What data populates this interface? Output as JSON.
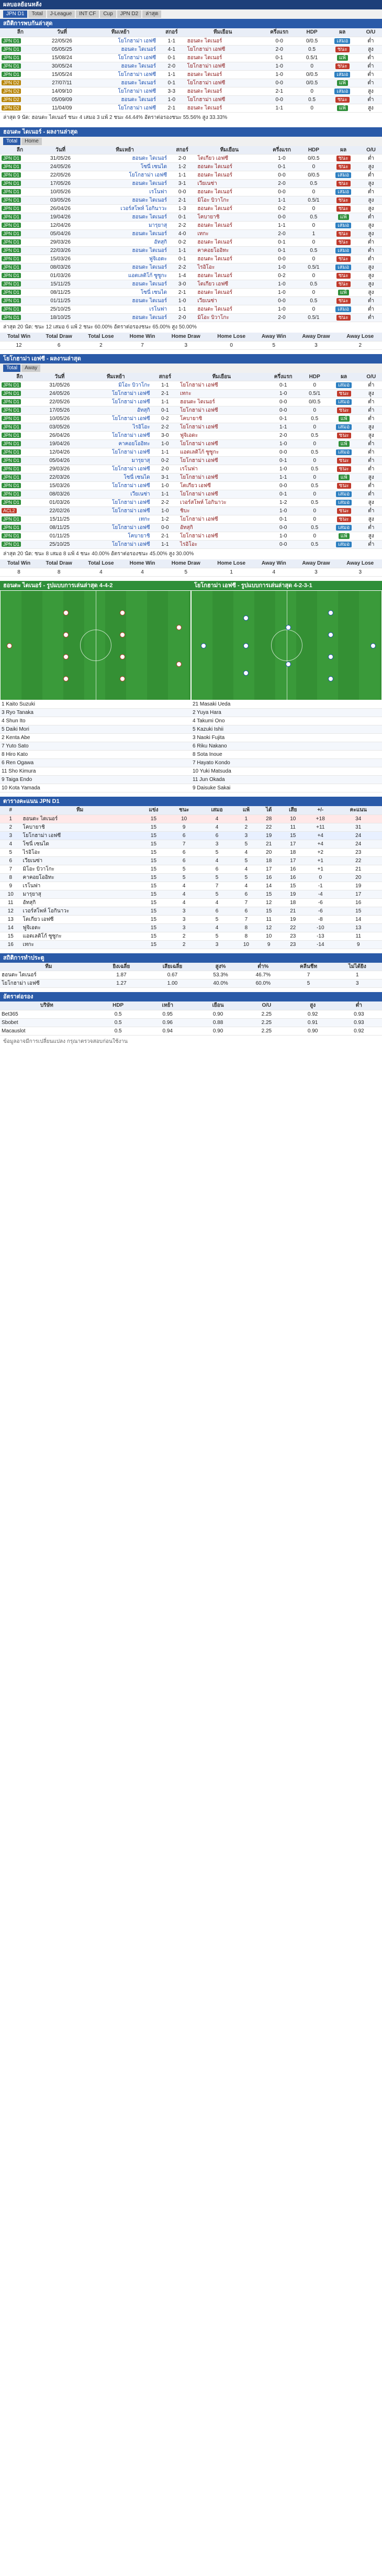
{
  "header": {
    "title": "ผลบอลย้อนหลัง",
    "filters": [
      "JPN D1",
      "Total",
      "J-League",
      "INT CF",
      "Cup",
      "JPN D2",
      "ล่าสุด"
    ]
  },
  "h2h": {
    "title": "สถิติการพบกันล่าสุด",
    "columns": [
      "ลีก",
      "วันที่",
      "ทีมเหย้า",
      "สกอร์",
      "ทีมเยือน",
      "ครึ่งแรก",
      "HDP",
      "ผล",
      "O/U"
    ],
    "rows": [
      [
        "JPN D1",
        "22/05/26",
        "โยโกฮาม่า เอฟซี",
        "1-1",
        "ฮอนดะ ไดเนอร์",
        "0-0",
        "0/0.5",
        "เสมอ",
        "ต่ำ"
      ],
      [
        "JPN D1",
        "05/05/25",
        "ฮอนดะ ไดเนอร์",
        "4-1",
        "โยโกฮาม่า เอฟซี",
        "2-0",
        "0.5",
        "ชนะ",
        "สูง"
      ],
      [
        "JPN D1",
        "15/08/24",
        "โยโกฮาม่า เอฟซี",
        "0-1",
        "ฮอนดะ ไดเนอร์",
        "0-1",
        "0.5/1",
        "แพ้",
        "ต่ำ"
      ],
      [
        "JPN D1",
        "30/05/24",
        "ฮอนดะ ไดเนอร์",
        "2-0",
        "โยโกฮาม่า เอฟซี",
        "1-0",
        "0",
        "ชนะ",
        "ต่ำ"
      ],
      [
        "JPN D1",
        "15/05/24",
        "โยโกฮาม่า เอฟซี",
        "1-1",
        "ฮอนดะ ไดเนอร์",
        "1-0",
        "0/0.5",
        "เสมอ",
        "ต่ำ"
      ],
      [
        "JPN D2",
        "27/07/11",
        "ฮอนดะ ไดเนอร์",
        "0-1",
        "โยโกฮาม่า เอฟซี",
        "0-0",
        "0/0.5",
        "แพ้",
        "ต่ำ"
      ],
      [
        "JPN D2",
        "14/09/10",
        "โยโกฮาม่า เอฟซี",
        "3-3",
        "ฮอนดะ ไดเนอร์",
        "2-1",
        "0",
        "เสมอ",
        "สูง"
      ],
      [
        "JPN D2",
        "05/09/09",
        "ฮอนดะ ไดเนอร์",
        "1-0",
        "โยโกฮาม่า เอฟซี",
        "0-0",
        "0.5",
        "ชนะ",
        "ต่ำ"
      ],
      [
        "JPN D2",
        "11/04/09",
        "โยโกฮาม่า เอฟซี",
        "2-1",
        "ฮอนดะ ไดเนอร์",
        "1-1",
        "0",
        "แพ้",
        "สูง"
      ]
    ],
    "summary": "ล่าสุด 9 นัด: ฮอนดะ ไดเนอร์ ชนะ 4 เสมอ 3 แพ้ 2 ชนะ 44.44% อัตราต่อรองชนะ 55.56% สูง 33.33%"
  },
  "team_home": {
    "title": "ฮอนดะ ไดเนอร์ - ผลงานล่าสุด",
    "tabs": [
      "Total",
      "Home"
    ],
    "rows": [
      [
        "JPN D1",
        "31/05/26",
        "ฮอนดะ ไดเนอร์",
        "2-0",
        "โตเกียว เอฟซี",
        "1-0",
        "0/0.5",
        "ชนะ",
        "ต่ำ"
      ],
      [
        "JPN D1",
        "24/05/26",
        "โซนี่ เซนได",
        "1-2",
        "ฮอนดะ ไดเนอร์",
        "0-1",
        "0",
        "ชนะ",
        "สูง"
      ],
      [
        "JPN D1",
        "22/05/26",
        "โยโกฮาม่า เอฟซี",
        "1-1",
        "ฮอนดะ ไดเนอร์",
        "0-0",
        "0/0.5",
        "เสมอ",
        "ต่ำ"
      ],
      [
        "JPN D1",
        "17/05/26",
        "ฮอนดะ ไดเนอร์",
        "3-1",
        "เวียเนซ่า",
        "2-0",
        "0.5",
        "ชนะ",
        "สูง"
      ],
      [
        "JPN D1",
        "10/05/26",
        "เรโนฟา",
        "0-0",
        "ฮอนดะ ไดเนอร์",
        "0-0",
        "0",
        "เสมอ",
        "ต่ำ"
      ],
      [
        "JPN D1",
        "03/05/26",
        "ฮอนดะ ไดเนอร์",
        "2-1",
        "มิโอะ บิวาโกะ",
        "1-1",
        "0.5/1",
        "ชนะ",
        "สูง"
      ],
      [
        "JPN D1",
        "26/04/26",
        "เวอร์สโพห์ โอกินาวะ",
        "1-3",
        "ฮอนดะ ไดเนอร์",
        "0-2",
        "0",
        "ชนะ",
        "สูง"
      ],
      [
        "JPN D1",
        "19/04/26",
        "ฮอนดะ ไดเนอร์",
        "0-1",
        "โคบายาชิ",
        "0-0",
        "0.5",
        "แพ้",
        "ต่ำ"
      ],
      [
        "JPN D1",
        "12/04/26",
        "มารุยาสุ",
        "2-2",
        "ฮอนดะ ไดเนอร์",
        "1-1",
        "0",
        "เสมอ",
        "สูง"
      ],
      [
        "JPN D1",
        "05/04/26",
        "ฮอนดะ ไดเนอร์",
        "4-0",
        "เทกะ",
        "2-0",
        "1",
        "ชนะ",
        "สูง"
      ],
      [
        "JPN D1",
        "29/03/26",
        "อัทสุกิ",
        "0-2",
        "ฮอนดะ ไดเนอร์",
        "0-1",
        "0",
        "ชนะ",
        "ต่ำ"
      ],
      [
        "JPN D1",
        "22/03/26",
        "ฮอนดะ ไดเนอร์",
        "1-1",
        "คาคอยโออิทะ",
        "0-1",
        "0.5",
        "เสมอ",
        "ต่ำ"
      ],
      [
        "JPN D1",
        "15/03/26",
        "ฟูจิเอดะ",
        "0-1",
        "ฮอนดะ ไดเนอร์",
        "0-0",
        "0",
        "ชนะ",
        "ต่ำ"
      ],
      [
        "JPN D1",
        "08/03/26",
        "ฮอนดะ ไดเนอร์",
        "2-2",
        "ไรอิโอะ",
        "1-0",
        "0.5/1",
        "เสมอ",
        "สูง"
      ],
      [
        "JPN D1",
        "01/03/26",
        "แอตเลติโก้ ซูซูกะ",
        "1-4",
        "ฮอนดะ ไดเนอร์",
        "0-2",
        "0",
        "ชนะ",
        "สูง"
      ],
      [
        "JPN D1",
        "15/11/25",
        "ฮอนดะ ไดเนอร์",
        "3-0",
        "โตเกียว เอฟซี",
        "1-0",
        "0.5",
        "ชนะ",
        "สูง"
      ],
      [
        "JPN D1",
        "08/11/25",
        "โซนี่ เซนได",
        "2-1",
        "ฮอนดะ ไดเนอร์",
        "1-0",
        "0",
        "แพ้",
        "สูง"
      ],
      [
        "JPN D1",
        "01/11/25",
        "ฮอนดะ ไดเนอร์",
        "1-0",
        "เวียเนซ่า",
        "0-0",
        "0.5",
        "ชนะ",
        "ต่ำ"
      ],
      [
        "JPN D1",
        "25/10/25",
        "เรโนฟา",
        "1-1",
        "ฮอนดะ ไดเนอร์",
        "1-0",
        "0",
        "เสมอ",
        "ต่ำ"
      ],
      [
        "JPN D1",
        "18/10/25",
        "ฮอนดะ ไดเนอร์",
        "2-0",
        "มิโอะ บิวาโกะ",
        "2-0",
        "0.5/1",
        "ชนะ",
        "ต่ำ"
      ]
    ],
    "summary": "ล่าสุด 20 นัด: ชนะ 12 เสมอ 6 แพ้ 2 ชนะ 60.00% อัตราต่อรองชนะ 65.00% สูง 50.00%"
  },
  "team_away": {
    "title": "โยโกฮาม่า เอฟซี - ผลงานล่าสุด",
    "tabs": [
      "Total",
      "Away"
    ],
    "rows": [
      [
        "JPN D1",
        "31/05/26",
        "มิโอะ บิวาโกะ",
        "1-1",
        "โยโกฮาม่า เอฟซี",
        "0-1",
        "0",
        "เสมอ",
        "ต่ำ"
      ],
      [
        "JPN D1",
        "24/05/26",
        "โยโกฮาม่า เอฟซี",
        "2-1",
        "เทกะ",
        "1-0",
        "0.5/1",
        "ชนะ",
        "สูง"
      ],
      [
        "JPN D1",
        "22/05/26",
        "โยโกฮาม่า เอฟซี",
        "1-1",
        "ฮอนดะ ไดเนอร์",
        "0-0",
        "0/0.5",
        "เสมอ",
        "ต่ำ"
      ],
      [
        "JPN D1",
        "17/05/26",
        "อัทสุกิ",
        "0-1",
        "โยโกฮาม่า เอฟซี",
        "0-0",
        "0",
        "ชนะ",
        "ต่ำ"
      ],
      [
        "JPN D1",
        "10/05/26",
        "โยโกฮาม่า เอฟซี",
        "0-2",
        "โคบายาชิ",
        "0-1",
        "0.5",
        "แพ้",
        "ต่ำ"
      ],
      [
        "JPN D1",
        "03/05/26",
        "ไรอิโอะ",
        "2-2",
        "โยโกฮาม่า เอฟซี",
        "1-1",
        "0",
        "เสมอ",
        "สูง"
      ],
      [
        "JPN D1",
        "26/04/26",
        "โยโกฮาม่า เอฟซี",
        "3-0",
        "ฟูจิเอดะ",
        "2-0",
        "0.5",
        "ชนะ",
        "สูง"
      ],
      [
        "JPN D1",
        "19/04/26",
        "คาคอยโออิทะ",
        "1-0",
        "โยโกฮาม่า เอฟซี",
        "1-0",
        "0",
        "แพ้",
        "ต่ำ"
      ],
      [
        "JPN D1",
        "12/04/26",
        "โยโกฮาม่า เอฟซี",
        "1-1",
        "แอตเลติโก้ ซูซูกะ",
        "0-0",
        "0.5",
        "เสมอ",
        "ต่ำ"
      ],
      [
        "JPN D1",
        "05/04/26",
        "มารุยาสุ",
        "0-2",
        "โยโกฮาม่า เอฟซี",
        "0-1",
        "0",
        "ชนะ",
        "ต่ำ"
      ],
      [
        "JPN D1",
        "29/03/26",
        "โยโกฮาม่า เอฟซี",
        "2-0",
        "เรโนฟา",
        "1-0",
        "0.5",
        "ชนะ",
        "ต่ำ"
      ],
      [
        "JPN D1",
        "22/03/26",
        "โซนี่ เซนได",
        "3-1",
        "โยโกฮาม่า เอฟซี",
        "1-1",
        "0",
        "แพ้",
        "สูง"
      ],
      [
        "JPN D1",
        "15/03/26",
        "โยโกฮาม่า เอฟซี",
        "1-0",
        "โตเกียว เอฟซี",
        "0-0",
        "0.5",
        "ชนะ",
        "ต่ำ"
      ],
      [
        "JPN D1",
        "08/03/26",
        "เวียเนซ่า",
        "1-1",
        "โยโกฮาม่า เอฟซี",
        "0-1",
        "0",
        "เสมอ",
        "ต่ำ"
      ],
      [
        "JPN D1",
        "01/03/26",
        "โยโกฮาม่า เอฟซี",
        "2-2",
        "เวอร์สโพห์ โอกินาวะ",
        "1-2",
        "0.5",
        "เสมอ",
        "สูง"
      ],
      [
        "ACL2",
        "22/02/26",
        "โยโกฮาม่า เอฟซี",
        "1-0",
        "ชิบะ",
        "1-0",
        "0",
        "ชนะ",
        "ต่ำ"
      ],
      [
        "JPN D1",
        "15/11/25",
        "เทกะ",
        "1-2",
        "โยโกฮาม่า เอฟซี",
        "0-1",
        "0",
        "ชนะ",
        "สูง"
      ],
      [
        "JPN D1",
        "08/11/25",
        "โยโกฮาม่า เอฟซี",
        "0-0",
        "อัทสุกิ",
        "0-0",
        "0.5",
        "เสมอ",
        "ต่ำ"
      ],
      [
        "JPN D1",
        "01/11/25",
        "โคบายาชิ",
        "2-1",
        "โยโกฮาม่า เอฟซี",
        "1-0",
        "0",
        "แพ้",
        "สูง"
      ],
      [
        "JPN D1",
        "25/10/25",
        "โยโกฮาม่า เอฟซี",
        "1-1",
        "ไรอิโอะ",
        "0-0",
        "0.5",
        "เสมอ",
        "ต่ำ"
      ]
    ],
    "summary": "ล่าสุด 20 นัด: ชนะ 8 เสมอ 8 แพ้ 4 ชนะ 40.00% อัตราต่อรองชนะ 45.00% สูง 30.00%"
  },
  "columns": [
    "ลีก",
    "วันที่",
    "ทีมเหย้า",
    "สกอร์",
    "ทีมเยือน",
    "ครึ่งแรก",
    "HDP",
    "ผล",
    "O/U"
  ],
  "stats_headers": [
    "Total Win",
    "Total Draw",
    "Total Lose",
    "Home Win",
    "Home Draw",
    "Home Lose",
    "Away Win",
    "Away Draw",
    "Away Lose"
  ],
  "stats_home": [
    "12",
    "6",
    "2",
    "7",
    "3",
    "0",
    "5",
    "3",
    "2"
  ],
  "stats_away": [
    "8",
    "8",
    "4",
    "4",
    "5",
    "1",
    "4",
    "3",
    "3"
  ],
  "lineup": {
    "title_home": "ฮอนดะ ไดเนอร์ - รูปแบบการเล่นล่าสุด 4-4-2",
    "title_away": "โยโกฮาม่า เอฟซี - รูปแบบการเล่นล่าสุด 4-2-3-1",
    "home_players": [
      "1 Kaito Suzuki",
      "3 Ryo Tanaka",
      "4 Shun Ito",
      "5 Daiki Mori",
      "2 Kenta Abe",
      "7 Yuto Sato",
      "8 Hiro Kato",
      "6 Ren Ogawa",
      "11 Sho Kimura",
      "9 Taiga Endo",
      "10 Kota Yamada"
    ],
    "away_players": [
      "21 Masaki Ueda",
      "2 Yuya Hara",
      "4 Takumi Ono",
      "5 Kazuki Ishii",
      "3 Naoki Fujita",
      "6 Riku Nakano",
      "8 Sota Inoue",
      "7 Hayato Kondo",
      "10 Yuki Matsuda",
      "11 Jun Okada",
      "9 Daisuke Sakai"
    ]
  },
  "standings": {
    "title": "ตารางคะแนน JPN D1",
    "columns": [
      "#",
      "ทีม",
      "แข่ง",
      "ชนะ",
      "เสมอ",
      "แพ้",
      "ได้",
      "เสีย",
      "+/-",
      "คะแนน"
    ],
    "rows": [
      [
        "1",
        "ฮอนดะ ไดเนอร์",
        "15",
        "10",
        "4",
        "1",
        "28",
        "10",
        "+18",
        "34"
      ],
      [
        "2",
        "โคบายาชิ",
        "15",
        "9",
        "4",
        "2",
        "22",
        "11",
        "+11",
        "31"
      ],
      [
        "3",
        "โยโกฮาม่า เอฟซี",
        "15",
        "6",
        "6",
        "3",
        "19",
        "15",
        "+4",
        "24"
      ],
      [
        "4",
        "โซนี่ เซนได",
        "15",
        "7",
        "3",
        "5",
        "21",
        "17",
        "+4",
        "24"
      ],
      [
        "5",
        "ไรอิโอะ",
        "15",
        "6",
        "5",
        "4",
        "20",
        "18",
        "+2",
        "23"
      ],
      [
        "6",
        "เวียเนซ่า",
        "15",
        "6",
        "4",
        "5",
        "18",
        "17",
        "+1",
        "22"
      ],
      [
        "7",
        "มิโอะ บิวาโกะ",
        "15",
        "5",
        "6",
        "4",
        "17",
        "16",
        "+1",
        "21"
      ],
      [
        "8",
        "คาคอยโออิทะ",
        "15",
        "5",
        "5",
        "5",
        "16",
        "16",
        "0",
        "20"
      ],
      [
        "9",
        "เรโนฟา",
        "15",
        "4",
        "7",
        "4",
        "14",
        "15",
        "-1",
        "19"
      ],
      [
        "10",
        "มารุยาสุ",
        "15",
        "4",
        "5",
        "6",
        "15",
        "19",
        "-4",
        "17"
      ],
      [
        "11",
        "อัทสุกิ",
        "15",
        "4",
        "4",
        "7",
        "12",
        "18",
        "-6",
        "16"
      ],
      [
        "12",
        "เวอร์สโพห์ โอกินาวะ",
        "15",
        "3",
        "6",
        "6",
        "15",
        "21",
        "-6",
        "15"
      ],
      [
        "13",
        "โตเกียว เอฟซี",
        "15",
        "3",
        "5",
        "7",
        "11",
        "19",
        "-8",
        "14"
      ],
      [
        "14",
        "ฟูจิเอดะ",
        "15",
        "3",
        "4",
        "8",
        "12",
        "22",
        "-10",
        "13"
      ],
      [
        "15",
        "แอตเลติโก้ ซูซูกะ",
        "15",
        "2",
        "5",
        "8",
        "10",
        "23",
        "-13",
        "11"
      ],
      [
        "16",
        "เทกะ",
        "15",
        "2",
        "3",
        "10",
        "9",
        "23",
        "-14",
        "9"
      ]
    ]
  },
  "goal_stats": {
    "title": "สถิติการทำประตู",
    "columns": [
      "ทีม",
      "ยิงเฉลี่ย",
      "เสียเฉลี่ย",
      "สูง%",
      "ต่ำ%",
      "คลีนชีท",
      "ไม่ได้ยิง"
    ],
    "rows": [
      [
        "ฮอนดะ ไดเนอร์",
        "1.87",
        "0.67",
        "53.3%",
        "46.7%",
        "7",
        "1"
      ],
      [
        "โยโกฮาม่า เอฟซี",
        "1.27",
        "1.00",
        "40.0%",
        "60.0%",
        "5",
        "3"
      ]
    ]
  },
  "odds": {
    "title": "อัตราต่อรอง",
    "columns": [
      "บริษัท",
      "HDP",
      "เหย้า",
      "เยือน",
      "O/U",
      "สูง",
      "ต่ำ"
    ],
    "rows": [
      [
        "Bet365",
        "0.5",
        "0.95",
        "0.90",
        "2.25",
        "0.92",
        "0.93"
      ],
      [
        "Sbobet",
        "0.5",
        "0.96",
        "0.88",
        "2.25",
        "0.91",
        "0.93"
      ],
      [
        "Macauslot",
        "0.5",
        "0.94",
        "0.90",
        "2.25",
        "0.90",
        "0.92"
      ]
    ]
  },
  "footer": "ข้อมูลอาจมีการเปลี่ยนแปลง กรุณาตรวจสอบก่อนใช้งาน"
}
